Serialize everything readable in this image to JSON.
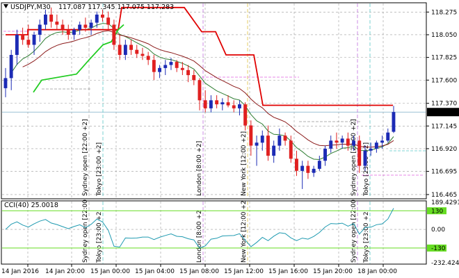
{
  "header": {
    "symbol": "USDJPY,M30",
    "ohlc": "117.087 117.345 117.075 117.283"
  },
  "price_axis": {
    "ticks": [
      "118.275",
      "118.050",
      "117.825",
      "117.600",
      "117.370",
      "117.145",
      "116.920",
      "116.695",
      "116.465"
    ],
    "current_price": "117.283",
    "current_color": "#000000"
  },
  "cci": {
    "label": "CCI(40) 25.0018",
    "ticks": [
      "189.4291",
      "130",
      "0.00",
      "-130",
      "-232.4243"
    ]
  },
  "time_axis": {
    "labels": [
      "14 Jan 2016",
      "14 Jan 20:00",
      "15 Jan 00:00",
      "15 Jan 04:00",
      "15 Jan 08:00",
      "15 Jan 12:00",
      "15 Jan 16:00",
      "15 Jan 20:00",
      "18 Jan 00:00"
    ]
  },
  "sessions": [
    {
      "main": "Sydney open [22:00 +2]",
      "cci": "Sydney open [22:00"
    },
    {
      "main": "Tokyo [23:00 +2]",
      "cci": "Tokyo [23:00 +2"
    },
    {
      "main": "London [8:00 +2]",
      "cci": "London [8:00 +2"
    },
    {
      "main": "New York [12:00 +2]",
      "cci": "New York [12:00 +2"
    },
    {
      "main": "Sydney open [22:00 +2]",
      "cci": "Sydney open [22:00"
    },
    {
      "main": "Tokyo [23:00 +2]",
      "cci": "Tokyo [23:00 +2"
    }
  ],
  "colors": {
    "bull": "#1c2bb5",
    "bear": "#e02020",
    "ma_fast": "#2e7d32",
    "ma_slow": "#8b1a1a",
    "stop_red": "#e00000",
    "stop_green": "#22cc22",
    "cci_line": "#1e9ab0",
    "cci_level": "#66dd22"
  },
  "chart_data": {
    "type": "candlestick",
    "symbol": "USDJPY",
    "timeframe": "M30",
    "y_range": [
      116.43,
      118.36
    ],
    "candles": [
      [
        117.52,
        117.72,
        117.43,
        117.62
      ],
      [
        117.62,
        117.9,
        117.5,
        117.85
      ],
      [
        117.85,
        118.1,
        117.75,
        118.05
      ],
      [
        118.05,
        118.12,
        117.95,
        118.0
      ],
      [
        118.0,
        118.15,
        117.92,
        117.95
      ],
      [
        117.95,
        118.08,
        117.85,
        118.05
      ],
      [
        118.05,
        118.2,
        117.98,
        118.15
      ],
      [
        118.15,
        118.3,
        118.1,
        118.25
      ],
      [
        118.25,
        118.32,
        118.12,
        118.18
      ],
      [
        118.18,
        118.25,
        118.1,
        118.15
      ],
      [
        118.15,
        118.2,
        118.05,
        118.1
      ],
      [
        118.1,
        118.15,
        118.0,
        118.05
      ],
      [
        118.05,
        118.12,
        118.0,
        118.1
      ],
      [
        118.1,
        118.18,
        118.05,
        118.15
      ],
      [
        118.15,
        118.22,
        118.08,
        118.12
      ],
      [
        118.12,
        118.2,
        118.05,
        118.17
      ],
      [
        118.17,
        118.28,
        118.12,
        118.25
      ],
      [
        118.25,
        118.3,
        118.18,
        118.22
      ],
      [
        118.22,
        118.28,
        118.1,
        118.15
      ],
      [
        118.15,
        118.2,
        117.9,
        117.95
      ],
      [
        117.95,
        118.05,
        117.8,
        117.85
      ],
      [
        117.85,
        118.0,
        117.8,
        117.95
      ],
      [
        117.95,
        118.0,
        117.85,
        117.9
      ],
      [
        117.9,
        117.95,
        117.82,
        117.86
      ],
      [
        117.86,
        117.92,
        117.8,
        117.84
      ],
      [
        117.84,
        117.88,
        117.75,
        117.8
      ],
      [
        117.8,
        117.85,
        117.6,
        117.68
      ],
      [
        117.68,
        117.75,
        117.62,
        117.72
      ],
      [
        117.72,
        117.8,
        117.65,
        117.75
      ],
      [
        117.75,
        117.82,
        117.7,
        117.78
      ],
      [
        117.78,
        117.8,
        117.68,
        117.72
      ],
      [
        117.72,
        117.78,
        117.65,
        117.7
      ],
      [
        117.7,
        117.75,
        117.58,
        117.65
      ],
      [
        117.65,
        117.7,
        117.55,
        117.6
      ],
      [
        117.6,
        117.62,
        117.3,
        117.4
      ],
      [
        117.4,
        117.5,
        117.28,
        117.32
      ],
      [
        117.32,
        117.45,
        117.28,
        117.4
      ],
      [
        117.4,
        117.45,
        117.32,
        117.36
      ],
      [
        117.36,
        117.42,
        117.3,
        117.38
      ],
      [
        117.38,
        117.45,
        117.33,
        117.35
      ],
      [
        117.35,
        117.4,
        117.28,
        117.32
      ],
      [
        117.32,
        117.4,
        117.25,
        117.36
      ],
      [
        117.36,
        117.38,
        117.1,
        117.15
      ],
      [
        117.15,
        117.2,
        116.85,
        116.95
      ],
      [
        116.95,
        117.05,
        116.75,
        116.98
      ],
      [
        116.98,
        117.1,
        116.9,
        117.05
      ],
      [
        117.05,
        117.15,
        116.8,
        116.85
      ],
      [
        116.85,
        117.0,
        116.78,
        116.95
      ],
      [
        116.95,
        117.12,
        116.9,
        117.05
      ],
      [
        117.05,
        117.08,
        116.95,
        117.0
      ],
      [
        117.0,
        117.05,
        116.78,
        116.82
      ],
      [
        116.82,
        116.9,
        116.65,
        116.7
      ],
      [
        116.7,
        116.8,
        116.52,
        116.75
      ],
      [
        116.75,
        116.8,
        116.62,
        116.68
      ],
      [
        116.68,
        116.75,
        116.64,
        116.72
      ],
      [
        116.72,
        116.85,
        116.7,
        116.8
      ],
      [
        116.8,
        116.95,
        116.75,
        116.92
      ],
      [
        116.92,
        117.05,
        116.88,
        117.0
      ],
      [
        117.0,
        117.08,
        116.92,
        116.98
      ],
      [
        116.98,
        117.05,
        116.92,
        117.02
      ],
      [
        117.02,
        117.08,
        116.9,
        116.95
      ],
      [
        116.95,
        117.05,
        116.9,
        117.0
      ],
      [
        117.0,
        117.05,
        116.68,
        116.75
      ],
      [
        116.75,
        116.95,
        116.7,
        116.9
      ],
      [
        116.9,
        116.98,
        116.85,
        116.92
      ],
      [
        116.92,
        117.0,
        116.88,
        116.98
      ],
      [
        116.98,
        117.05,
        116.92,
        117.0
      ],
      [
        117.0,
        117.12,
        116.98,
        117.08
      ],
      [
        117.087,
        117.345,
        117.075,
        117.283
      ]
    ]
  }
}
